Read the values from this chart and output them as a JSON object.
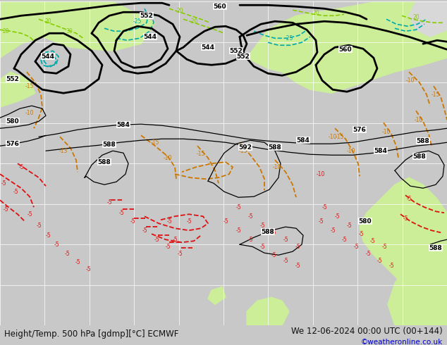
{
  "title_left": "Height/Temp. 500 hPa [gdmp][°C] ECMWF",
  "title_right": "We 12-06-2024 00:00 UTC (00+144)",
  "copyright": "©weatheronline.co.uk",
  "bg_sea": "#c8c8c8",
  "bg_land": "#ccee99",
  "bg_land2": "#d4f0a0",
  "grid_color": "#ffffff",
  "bottom_bar_color": "#aaaaaa",
  "geo_color": "#000000",
  "geo_lw": 2.0,
  "temp_orange_color": "#cc7700",
  "temp_red_color": "#dd1111",
  "temp_cyan_color": "#00aaaa",
  "temp_green_color": "#88cc00",
  "label_fs": 6.5,
  "small_fs": 5.5,
  "title_fs": 8.5,
  "copy_fs": 7.5,
  "title_color": "#111111",
  "copy_color": "#0000cc"
}
